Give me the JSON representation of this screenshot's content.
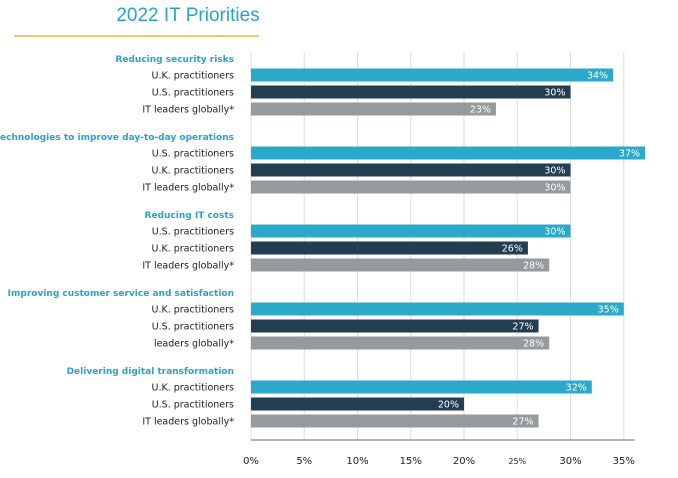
{
  "chart_data": {
    "type": "bar",
    "orientation": "horizontal",
    "title": "2022 IT Priorities",
    "xlim": [
      0,
      36
    ],
    "x_ticks": [
      "0%",
      "5%",
      "10%",
      "15%",
      "20%",
      "25%",
      "30%",
      "35%"
    ],
    "grid": true,
    "colors": {
      "title": "#2aa3c9",
      "title_rule": "#f7c26b",
      "group_label": "#2aa3c9",
      "teal": "#2aa9cb",
      "navy": "#233d51",
      "gray": "#959a9d",
      "grid": "#dddddd",
      "axis": "#999999"
    },
    "groups": [
      {
        "label": "Reducing security risks",
        "bars": [
          {
            "label": "U.K. practitioners",
            "value": 34,
            "value_label": "34%",
            "color": "teal"
          },
          {
            "label": "U.S. practitioners",
            "value": 30,
            "value_label": "30%",
            "color": "navy"
          },
          {
            "label": "IT leaders globally*",
            "value": 23,
            "value_label": "23%",
            "color": "gray"
          }
        ]
      },
      {
        "label": "Adopting new technologies to improve day-to-day operations",
        "bars": [
          {
            "label": "U.S. practitioners",
            "value": 37,
            "value_label": "37%",
            "color": "teal"
          },
          {
            "label": "U.K. practitioners",
            "value": 30,
            "value_label": "30%",
            "color": "navy"
          },
          {
            "label": "IT leaders globally*",
            "value": 30,
            "value_label": "30%",
            "color": "gray"
          }
        ]
      },
      {
        "label": "Reducing IT costs",
        "bars": [
          {
            "label": "U.S. practitioners",
            "value": 30,
            "value_label": "30%",
            "color": "teal"
          },
          {
            "label": "U.K. practitioners",
            "value": 26,
            "value_label": "26%",
            "color": "navy"
          },
          {
            "label": "IT leaders globally*",
            "value": 28,
            "value_label": "28%",
            "color": "gray"
          }
        ]
      },
      {
        "label": "Improving customer service and satisfaction",
        "bars": [
          {
            "label": "U.K. practitioners",
            "value": 35,
            "value_label": "35%",
            "color": "teal"
          },
          {
            "label": "U.S. practitioners",
            "value": 27,
            "value_label": "27%",
            "color": "navy"
          },
          {
            "label": "leaders globally*",
            "value": 28,
            "value_label": "28%",
            "color": "gray"
          }
        ]
      },
      {
        "label": "Delivering digital transformation",
        "bars": [
          {
            "label": "U.K. practitioners",
            "value": 32,
            "value_label": "32%",
            "color": "teal"
          },
          {
            "label": "U.S. practitioners",
            "value": 20,
            "value_label": "20%",
            "color": "navy"
          },
          {
            "label": "IT leaders globally*",
            "value": 27,
            "value_label": "27%",
            "color": "gray"
          }
        ]
      }
    ]
  }
}
